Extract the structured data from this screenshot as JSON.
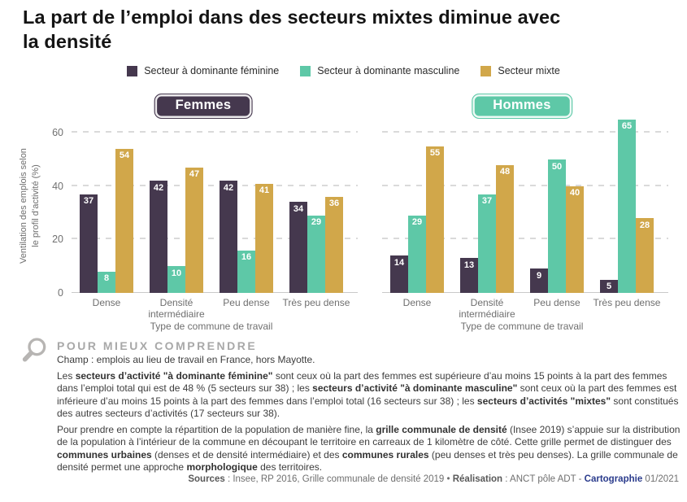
{
  "page": {
    "title_line1": "La part de l’emploi dans des secteurs mixtes diminue avec",
    "title_line2": "la densité"
  },
  "legend": {
    "items": [
      {
        "label": "Secteur à dominante féminine",
        "color": "#45384e"
      },
      {
        "label": "Secteur à dominante masculine",
        "color": "#5ec8a7"
      },
      {
        "label": "Secteur mixte",
        "color": "#d1a74a"
      }
    ]
  },
  "chart_data": [
    {
      "type": "bar",
      "title": "Femmes",
      "title_color": "#45384e",
      "categories": [
        "Dense",
        "Densité\nintermédiaire",
        "Peu dense",
        "Très peu dense"
      ],
      "series": [
        {
          "name": "Secteur à dominante féminine",
          "color": "#45384e",
          "values": [
            37,
            42,
            42,
            34
          ]
        },
        {
          "name": "Secteur à dominante masculine",
          "color": "#5ec8a7",
          "values": [
            8,
            10,
            16,
            29
          ]
        },
        {
          "name": "Secteur mixte",
          "color": "#d1a74a",
          "values": [
            54,
            47,
            41,
            36
          ]
        }
      ],
      "xlabel": "Type de commune de travail",
      "ylabel": "Ventilation des emplois selon\nle profil d’activité (%)",
      "yticks": [
        0,
        20,
        40,
        60
      ],
      "ylim": [
        0,
        65
      ],
      "grid": "dashed horizontal",
      "show_yticks": true,
      "value_labels": "inside-top, white"
    },
    {
      "type": "bar",
      "title": "Hommes",
      "title_color": "#5ec8a7",
      "categories": [
        "Dense",
        "Densité\nintermédiaire",
        "Peu dense",
        "Très peu dense"
      ],
      "series": [
        {
          "name": "Secteur à dominante féminine",
          "color": "#45384e",
          "values": [
            14,
            13,
            9,
            5
          ]
        },
        {
          "name": "Secteur à dominante masculine",
          "color": "#5ec8a7",
          "values": [
            29,
            37,
            50,
            65
          ]
        },
        {
          "name": "Secteur mixte",
          "color": "#d1a74a",
          "values": [
            55,
            48,
            40,
            28
          ]
        }
      ],
      "xlabel": "Type de commune de travail",
      "ylabel": "",
      "yticks": [
        0,
        20,
        40,
        60
      ],
      "ylim": [
        0,
        65
      ],
      "grid": "dashed horizontal",
      "show_yticks": false,
      "value_labels": "inside-top, white"
    }
  ],
  "explainer": {
    "heading": "POUR MIEUX COMPRENDRE",
    "champ": "Champ : emplois au lieu de travail en France, hors Mayotte.",
    "paragraphs": [
      [
        {
          "t": "Les "
        },
        {
          "t": "secteurs d’activité \"à dominante féminine\"",
          "b": true
        },
        {
          "t": " sont ceux où la part des femmes est supérieure d’au moins 15 points à la part des femmes dans l’emploi total qui est de 48 % (5 secteurs sur 38) ; les "
        },
        {
          "t": "secteurs d’activité \"à dominante masculine\"",
          "b": true
        },
        {
          "t": " sont ceux où la part des femmes est inférieure d’au moins 15 points à la part des femmes dans l’emploi total (16 secteurs sur 38) ; les "
        },
        {
          "t": "secteurs d’activités \"mixtes\"",
          "b": true
        },
        {
          "t": " sont constitués des autres secteurs d’activités (17 secteurs sur 38)."
        }
      ],
      [
        {
          "t": "Pour prendre en compte la répartition de la population de manière fine, la "
        },
        {
          "t": "grille communale de densité",
          "b": true
        },
        {
          "t": " (Insee 2019) s’appuie sur la distribution de la population à l’intérieur de la commune en découpant le territoire en carreaux de 1 kilomètre de côté. Cette grille permet de distinguer des "
        },
        {
          "t": "communes urbaines",
          "b": true
        },
        {
          "t": " (denses et de densité intermédiaire) et des "
        },
        {
          "t": "communes rurales",
          "b": true
        },
        {
          "t": " (peu denses et très peu denses). La grille communale de densité permet une approche "
        },
        {
          "t": "morphologique",
          "b": true
        },
        {
          "t": " des territoires."
        }
      ]
    ]
  },
  "sources": [
    {
      "t": "Sources",
      "b": true
    },
    {
      "t": " : Insee, RP 2016, Grille communale de densité 2019 • "
    },
    {
      "t": "Réalisation",
      "b": true
    },
    {
      "t": " : ANCT pôle ADT - "
    },
    {
      "t": "Cartographie",
      "b": true,
      "c": "#2a3b8c"
    },
    {
      "t": " 01/2021"
    }
  ]
}
